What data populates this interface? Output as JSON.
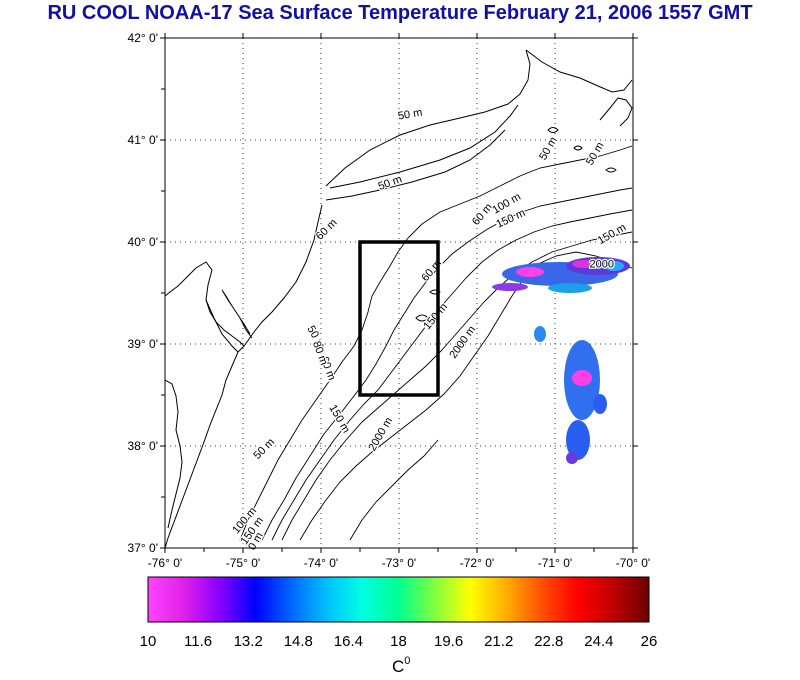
{
  "title": "RU COOL  NOAA-17 Sea Surface Temperature February 21, 2006 1557 GMT",
  "title_color": "#1010a8",
  "map": {
    "lon_range": [
      -76,
      -70
    ],
    "lat_range": [
      37,
      42
    ],
    "lon_ticks": [
      "-76° 0'",
      "-75° 0'",
      "-74° 0'",
      "-73° 0'",
      "-72° 0'",
      "-71° 0'",
      "-70° 0'"
    ],
    "lat_ticks": [
      "37° 0'",
      "38° 0'",
      "39° 0'",
      "40° 0'",
      "41° 0'",
      "42° 0'"
    ],
    "study_box": {
      "lon": [
        -73.5,
        -72.5
      ],
      "lat": [
        38.5,
        40.0
      ]
    },
    "contour_labels": [
      {
        "text": "50 m",
        "lon": -72.85,
        "lat": 41.22,
        "rot": -10
      },
      {
        "text": "50 m",
        "lon": -73.1,
        "lat": 40.55,
        "rot": -20
      },
      {
        "text": "50 m",
        "lon": -74.1,
        "lat": 39.05,
        "rot": 60
      },
      {
        "text": "50 m",
        "lon": -74.7,
        "lat": 37.95,
        "rot": -45
      },
      {
        "text": "50 m",
        "lon": -70.45,
        "lat": 40.85,
        "rot": -60
      },
      {
        "text": "50 m",
        "lon": -71.05,
        "lat": 40.9,
        "rot": -60
      },
      {
        "text": "60 m",
        "lon": -73.9,
        "lat": 40.1,
        "rot": -45
      },
      {
        "text": "60 m",
        "lon": -72.55,
        "lat": 39.7,
        "rot": -50
      },
      {
        "text": "60 m",
        "lon": -71.9,
        "lat": 40.25,
        "rot": -50
      },
      {
        "text": "100 m",
        "lon": -71.6,
        "lat": 40.35,
        "rot": -30
      },
      {
        "text": "100 m",
        "lon": -74.95,
        "lat": 37.25,
        "rot": -50
      },
      {
        "text": "150 m",
        "lon": -72.5,
        "lat": 39.25,
        "rot": -50
      },
      {
        "text": "150 m",
        "lon": -71.55,
        "lat": 40.2,
        "rot": -25
      },
      {
        "text": "150 m",
        "lon": -70.25,
        "lat": 40.05,
        "rot": -30
      },
      {
        "text": "150 m",
        "lon": -73.8,
        "lat": 38.25,
        "rot": 60
      },
      {
        "text": "150 m",
        "lon": -74.85,
        "lat": 37.15,
        "rot": -55
      },
      {
        "text": "2000 m",
        "lon": -72.15,
        "lat": 39.0,
        "rot": -55
      },
      {
        "text": "2000 m",
        "lon": -73.2,
        "lat": 38.1,
        "rot": -60
      },
      {
        "text": "2000",
        "lon": -70.4,
        "lat": 39.75,
        "rot": 0
      },
      {
        "text": "60 m",
        "lon": -73.95,
        "lat": 38.75,
        "rot": 70
      },
      {
        "text": "80 m",
        "lon": -74.05,
        "lat": 38.9,
        "rot": 70
      },
      {
        "text": "0 m",
        "lon": -74.8,
        "lat": 37.05,
        "rot": -60
      }
    ]
  },
  "colorbar": {
    "min": 10,
    "max": 26,
    "tick_labels": [
      "10",
      "11.6",
      "13.2",
      "14.8",
      "16.4",
      "18",
      "19.6",
      "21.2",
      "22.8",
      "24.4",
      "26"
    ],
    "unit_label": "C",
    "unit_superscript": "0",
    "colors": [
      "#ff44ff",
      "#e020e8",
      "#8a00ff",
      "#0000ff",
      "#0066ff",
      "#00c0ff",
      "#00ffe0",
      "#00ff90",
      "#80ff40",
      "#ffff00",
      "#ffb000",
      "#ff5000",
      "#ff0000",
      "#c00000",
      "#6a0000"
    ]
  }
}
